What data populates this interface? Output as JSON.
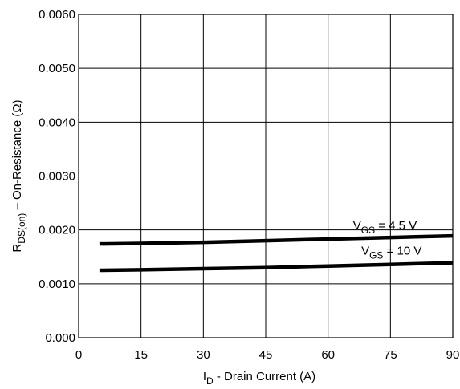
{
  "chart_data": {
    "type": "line",
    "title": "",
    "xlabel": {
      "main": "I",
      "sub": "D",
      "rest": "  -  Drain Current (A)"
    },
    "ylabel": {
      "main": "R",
      "sub": "DS(on)",
      "rest": " – On-Resistance (Ω)"
    },
    "xlim": [
      0,
      90
    ],
    "ylim": [
      0,
      0.006
    ],
    "xticks": [
      0,
      15,
      30,
      45,
      60,
      75,
      90
    ],
    "xtick_labels": [
      "0",
      "15",
      "30",
      "45",
      "60",
      "75",
      "90"
    ],
    "yticks": [
      0,
      0.001,
      0.002,
      0.003,
      0.004,
      0.005,
      0.006
    ],
    "ytick_labels": [
      "0.000",
      "0.0010",
      "0.0020",
      "0.0030",
      "0.0040",
      "0.0050",
      "0.0060"
    ],
    "grid": true,
    "legend": "none",
    "series": [
      {
        "name": "VGS = 4.5 V",
        "label_parts": {
          "main": "V",
          "sub": "GS",
          "rest": " = 4.5 V"
        },
        "label_at": {
          "x": 66,
          "y": 0.00201
        },
        "color": "#000000",
        "x": [
          5,
          15,
          30,
          45,
          60,
          75,
          90
        ],
        "values": [
          0.00174,
          0.00175,
          0.00177,
          0.0018,
          0.00183,
          0.00186,
          0.00189
        ]
      },
      {
        "name": "VGS = 10 V",
        "label_parts": {
          "main": "V",
          "sub": "GS",
          "rest": " = 10 V"
        },
        "label_at": {
          "x": 68,
          "y": 0.00154
        },
        "color": "#000000",
        "x": [
          5,
          15,
          30,
          45,
          60,
          75,
          90
        ],
        "values": [
          0.00125,
          0.00126,
          0.00128,
          0.0013,
          0.00133,
          0.00136,
          0.00139
        ]
      }
    ]
  }
}
